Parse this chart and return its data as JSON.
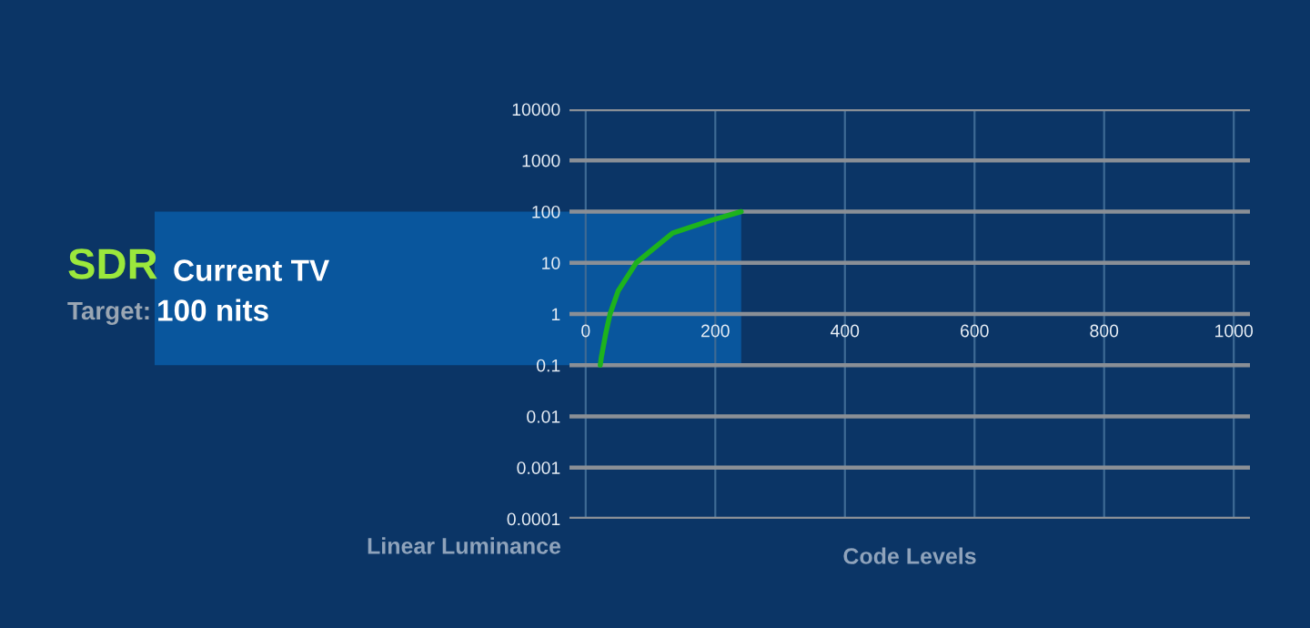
{
  "chart_data": {
    "type": "line",
    "xlabel": "Code Levels",
    "ylabel": "Linear Luminance",
    "annotations": [
      "SDR",
      "Current TV",
      "Target:",
      "100 nits"
    ],
    "series": [
      {
        "color": "#1db31d",
        "x": [
          22.5,
          24,
          31,
          37.6,
          50,
          78,
          134,
          191,
          240
        ],
        "values": [
          0.1,
          0.14,
          0.42,
          1,
          2.8,
          10,
          38,
          66,
          100
        ]
      }
    ],
    "bands": [
      {
        "axis": "y",
        "from": 0.1,
        "to": 100,
        "color": "#0a62b0"
      }
    ],
    "log": "y",
    "xlim": [
      -25,
      1025
    ],
    "xticks": [
      0,
      200,
      400,
      600,
      800,
      1000
    ],
    "ylim": [
      0.0001,
      10000
    ],
    "yticks": [
      0.0001,
      0.001,
      0.01,
      0.1,
      1,
      10,
      100,
      1000,
      10000
    ],
    "grid": true,
    "line_style": "solid"
  }
}
